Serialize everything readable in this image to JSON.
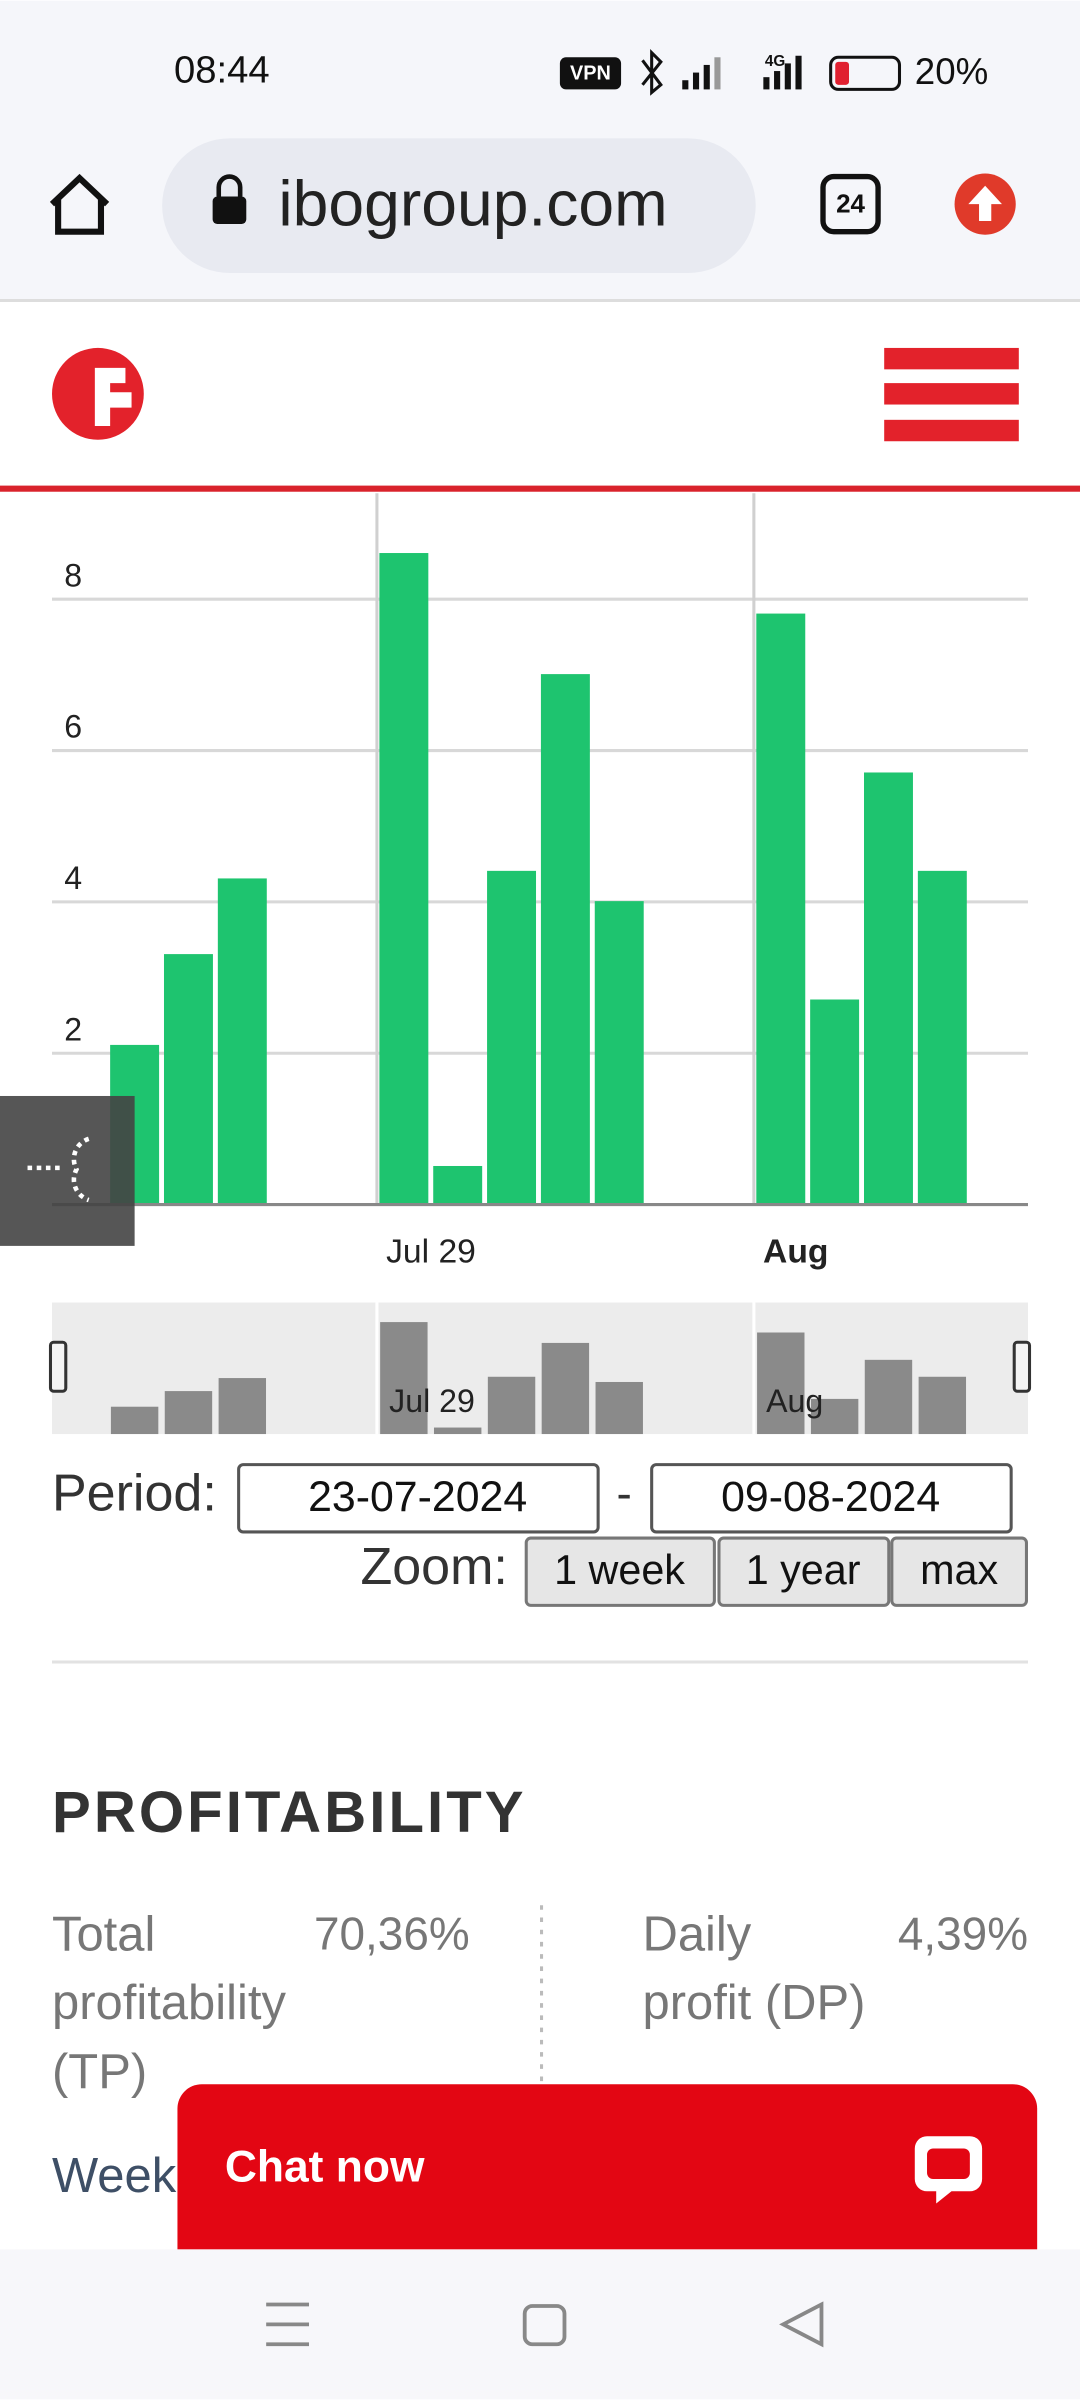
{
  "status_bar": {
    "time": "08:44",
    "vpn": "VPN",
    "network": "4G",
    "battery": "20%"
  },
  "browser": {
    "url": "ibogroup.com",
    "tabs": "24"
  },
  "chart_data": {
    "type": "bar",
    "categories": [
      null,
      null,
      null,
      null,
      null,
      "Jul 29",
      null,
      null,
      null,
      null,
      null,
      null,
      "Aug",
      null,
      null,
      null
    ],
    "values": [
      2.1,
      3.3,
      4.3,
      0,
      0,
      8.6,
      0.5,
      4.4,
      7.0,
      4.0,
      0,
      0,
      7.8,
      2.7,
      5.7,
      4.4
    ],
    "color": "#1ec46f",
    "navigator_color": "#8a8a8a",
    "ylim": [
      0,
      9.4
    ],
    "yticks": [
      2,
      4,
      6,
      8
    ],
    "grid": true
  },
  "period": {
    "label": "Period:",
    "from": "23-07-2024",
    "separator": "-",
    "to": "09-08-2024"
  },
  "zoom": {
    "label": "Zoom:",
    "buttons": [
      "1 week",
      "1 year",
      "max"
    ]
  },
  "profitability": {
    "title": "PROFITABILITY",
    "items": [
      {
        "label": [
          "Total",
          "profitability",
          "(TP)"
        ],
        "value": "70,36%"
      },
      {
        "label": [
          "Daily",
          "profit (DP)"
        ],
        "value": "4,39%"
      }
    ],
    "next_label": "Week"
  },
  "chat": {
    "button": "Chat now"
  }
}
